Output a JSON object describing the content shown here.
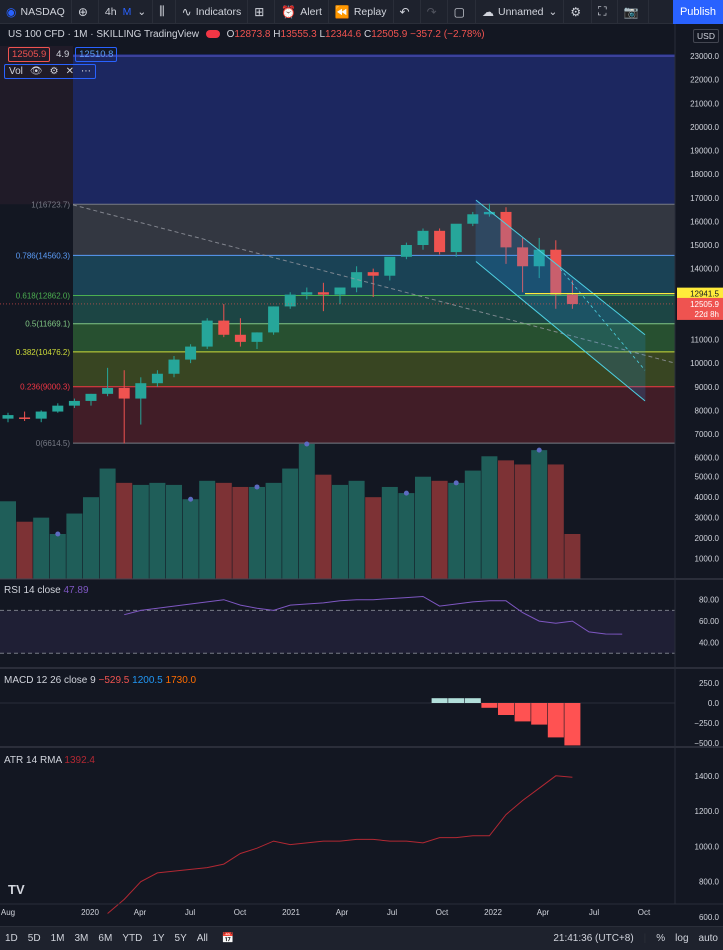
{
  "toolbar": {
    "symbol": "NASDAQ",
    "interval": "4h",
    "interval_alt": "M",
    "indicators": "Indicators",
    "alert": "Alert",
    "replay": "Replay",
    "layout_name": "Unnamed",
    "publish": "Publish"
  },
  "legend": {
    "title": "US 100 CFD · 1M · SKILLING  TradingView",
    "o_label": "O",
    "o": "12873.8",
    "h_label": "H",
    "h": "13555.3",
    "l_label": "L",
    "l": "12344.6",
    "c_label": "C",
    "c": "12505.9",
    "change": "−357.2 (−2.78%)",
    "bid": "12505.9",
    "spread": "4.9",
    "ask": "12510.8",
    "vol_label": "Vol"
  },
  "currency": "USD",
  "price_axis": [
    "23000.0",
    "22000.0",
    "21000.0",
    "20000.0",
    "19000.0",
    "18000.0",
    "17000.0",
    "16000.0",
    "15000.0",
    "14000.0",
    "13000.0",
    "12000.0",
    "11000.0",
    "10000.0",
    "9000.0",
    "8000.0",
    "7000.0",
    "6000.0",
    "5000.0",
    "4000.0",
    "3000.0",
    "2000.0",
    "1000.0"
  ],
  "price_tags": {
    "line": "12941.5",
    "last": "12505.9",
    "countdown": "22d 8h"
  },
  "fib_levels": [
    {
      "label": "1(16723.7)",
      "color": "#787b86"
    },
    {
      "label": "0.786(14560.3)",
      "color": "#5b9cf6"
    },
    {
      "label": "0.618(12862.0)",
      "color": "#4caf50"
    },
    {
      "label": "0.5(11669.1)",
      "color": "#81c784"
    },
    {
      "label": "0.382(10476.2)",
      "color": "#cddc39"
    },
    {
      "label": "0.236(9000.3)",
      "color": "#f23645"
    },
    {
      "label": "0(6614.5)",
      "color": "#787b86"
    }
  ],
  "rsi": {
    "label": "RSI 14 close",
    "value": "47.89",
    "axis": [
      "80.00",
      "60.00",
      "40.00"
    ]
  },
  "macd": {
    "label": "MACD 12 26 close 9",
    "hist": "−529.5",
    "macd": "1200.5",
    "signal": "1730.0",
    "axis": [
      "250.0",
      "0.0",
      "−250.0",
      "−500.0"
    ]
  },
  "atr": {
    "label": "ATR 14 RMA",
    "value": "1392.4",
    "axis": [
      "1400.0",
      "1200.0",
      "1000.0",
      "800.0",
      "600.0"
    ]
  },
  "time_axis": [
    "Aug",
    "2020",
    "Apr",
    "Jul",
    "Oct",
    "2021",
    "Apr",
    "Jul",
    "Oct",
    "2022",
    "Apr",
    "Jul",
    "Oct"
  ],
  "bottombar": {
    "ranges": [
      "1D",
      "5D",
      "1M",
      "3M",
      "6M",
      "YTD",
      "1Y",
      "5Y",
      "All"
    ],
    "clock": "21:41:36 (UTC+8)",
    "percent": "%",
    "log": "log",
    "auto": "auto"
  },
  "colors": {
    "up": "#26a69a",
    "down": "#ef5350",
    "bg": "#131722",
    "accent": "#2962ff",
    "rsi": "#7e57c2",
    "atr": "#b22833"
  }
}
